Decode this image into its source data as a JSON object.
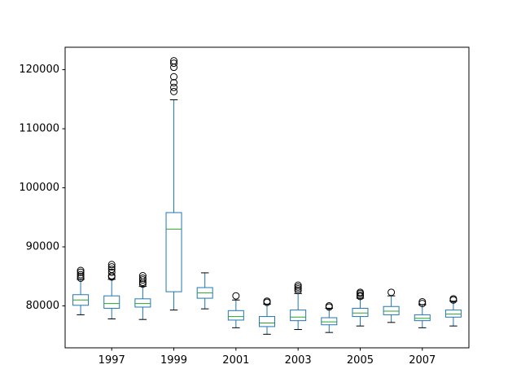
{
  "chart_data": {
    "type": "box",
    "title": "",
    "xlabel": "",
    "ylabel": "",
    "ylim": [
      72900,
      123800
    ],
    "yticks": [
      80000,
      90000,
      100000,
      110000,
      120000
    ],
    "ytick_labels": [
      "80000",
      "90000",
      "100000",
      "110000",
      "120000"
    ],
    "xtick_labels": [
      "1997",
      "1999",
      "2001",
      "2003",
      "2005",
      "2007"
    ],
    "grid": false,
    "colors": {
      "box": "#1f77b4",
      "median": "#2ca02c",
      "flier": "#000000",
      "cap": "#000000"
    },
    "boxes": [
      {
        "year": "1996",
        "whislo": 78500,
        "q1": 80100,
        "med": 81000,
        "q3": 81900,
        "whishi": 84500,
        "fliers": [
          84700,
          85000,
          85300,
          85700,
          86000
        ]
      },
      {
        "year": "1997",
        "whislo": 77800,
        "q1": 79600,
        "med": 80400,
        "q3": 81700,
        "whishi": 84500,
        "fliers": [
          84900,
          85100,
          85700,
          86200,
          86600,
          87000
        ]
      },
      {
        "year": "1998",
        "whislo": 77700,
        "q1": 79800,
        "med": 80400,
        "q3": 81200,
        "whishi": 83300,
        "fliers": [
          83700,
          84000,
          84400,
          84700,
          85100
        ]
      },
      {
        "year": "1999",
        "whislo": 79300,
        "q1": 82400,
        "med": 93000,
        "q3": 95800,
        "whishi": 114900,
        "fliers": [
          116300,
          117000,
          117800,
          118800,
          120400,
          121100,
          121500
        ]
      },
      {
        "year": "2000",
        "whislo": 79500,
        "q1": 81300,
        "med": 82200,
        "q3": 83100,
        "whishi": 85600,
        "fliers": []
      },
      {
        "year": "2001",
        "whislo": 76300,
        "q1": 77600,
        "med": 78200,
        "q3": 79200,
        "whishi": 81000,
        "fliers": [
          81700
        ]
      },
      {
        "year": "2002",
        "whislo": 75200,
        "q1": 76500,
        "med": 77100,
        "q3": 78200,
        "whishi": 80300,
        "fliers": [
          80600,
          80800
        ]
      },
      {
        "year": "2003",
        "whislo": 76000,
        "q1": 77500,
        "med": 78100,
        "q3": 79300,
        "whishi": 82100,
        "fliers": [
          82600,
          82900,
          83200,
          83500
        ]
      },
      {
        "year": "2004",
        "whislo": 75500,
        "q1": 76800,
        "med": 77300,
        "q3": 78000,
        "whishi": 79600,
        "fliers": [
          79800,
          80000
        ]
      },
      {
        "year": "2005",
        "whislo": 76600,
        "q1": 78200,
        "med": 78800,
        "q3": 79600,
        "whishi": 81300,
        "fliers": [
          81600,
          81800,
          82100,
          82300
        ]
      },
      {
        "year": "2006",
        "whislo": 77200,
        "q1": 78500,
        "med": 79100,
        "q3": 79900,
        "whishi": 81700,
        "fliers": [
          82300
        ]
      },
      {
        "year": "2007",
        "whislo": 76300,
        "q1": 77500,
        "med": 77900,
        "q3": 78500,
        "whishi": 80200,
        "fliers": [
          80400,
          80700
        ]
      },
      {
        "year": "2008",
        "whislo": 76600,
        "q1": 78100,
        "med": 78600,
        "q3": 79300,
        "whishi": 80800,
        "fliers": [
          81000,
          81200
        ]
      }
    ]
  }
}
